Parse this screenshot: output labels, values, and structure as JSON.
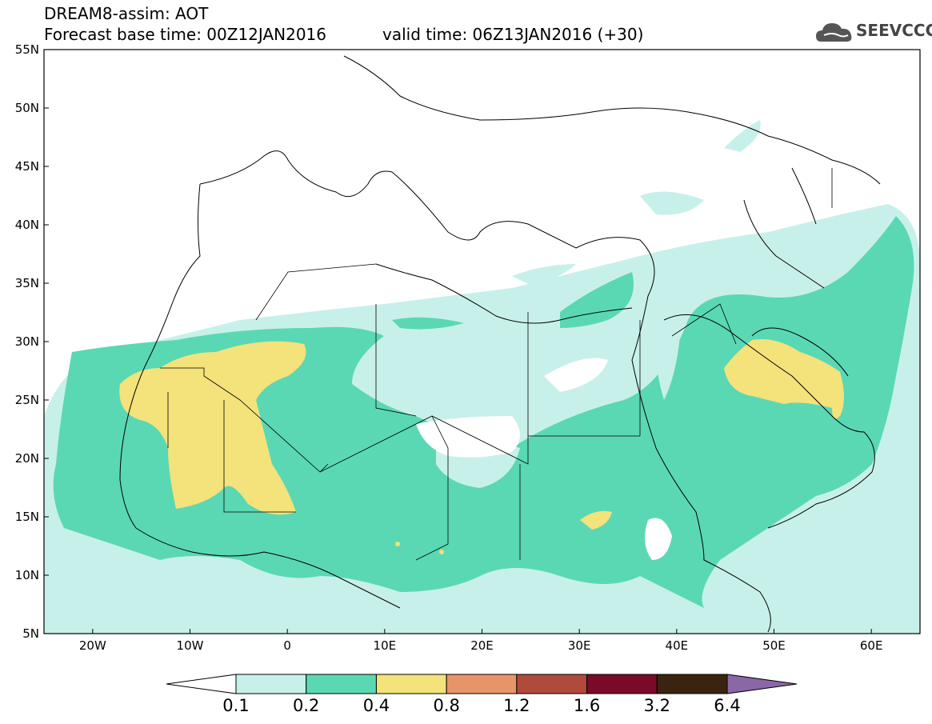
{
  "header": {
    "title_line1": "DREAM8-assim: AOT",
    "title_line2": "Forecast base time: 00Z12JAN2016",
    "valid_time": "valid time: 06Z13JAN2016 (+30)",
    "logo_text": "SEEVCCC"
  },
  "map": {
    "lon_range": [
      -25,
      65
    ],
    "lat_range": [
      5,
      55
    ],
    "lat_labels": [
      "55N",
      "50N",
      "45N",
      "40N",
      "35N",
      "30N",
      "25N",
      "20N",
      "15N",
      "10N",
      "5N"
    ],
    "lon_labels": [
      "20W",
      "10W",
      "0",
      "10E",
      "20E",
      "30E",
      "40E",
      "50E",
      "60E"
    ],
    "variable": "AOT"
  },
  "colorbar": {
    "labels": [
      "0.1",
      "0.2",
      "0.4",
      "0.8",
      "1.2",
      "1.6",
      "3.2",
      "6.4"
    ],
    "colors": [
      "#ffffff",
      "#c8f0ea",
      "#5ad8b4",
      "#f4e27a",
      "#e8946a",
      "#b04a3c",
      "#7a0a28",
      "#3a2410",
      "#8a68a8"
    ]
  },
  "colors": {
    "level_0.1": "#c8f0ea",
    "level_0.2": "#5ad8b4",
    "level_0.4": "#f4e27a"
  }
}
